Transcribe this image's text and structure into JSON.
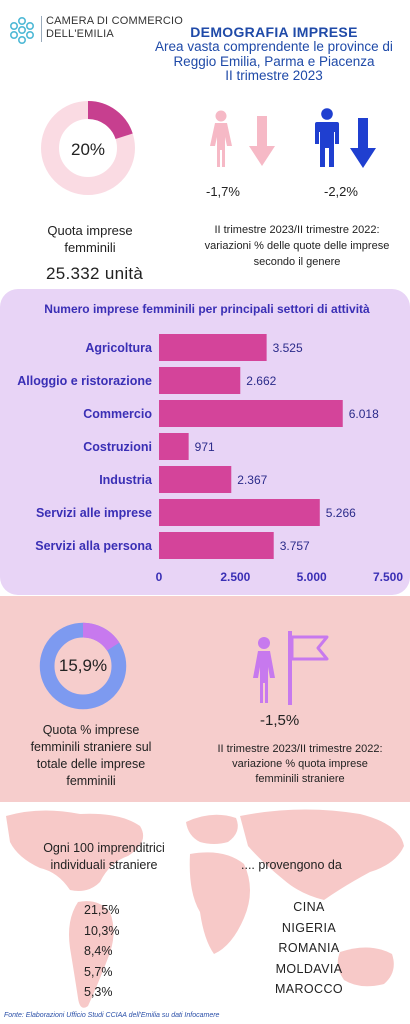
{
  "header": {
    "chamber_line1": "CAMERA DI COMMERCIO",
    "chamber_line2": "DELL'EMILIA",
    "title": "DEMOGRAFIA IMPRESE",
    "subtitle1": "Area vasta comprendente le province di",
    "subtitle2": "Reggio Emilia, Parma e Piacenza",
    "subtitle3": "II trimestre 2023"
  },
  "female_share": {
    "percent_label": "20%",
    "percent_value": 20,
    "label_line1": "Quota imprese",
    "label_line2": "femminili",
    "units": "25.332 unità"
  },
  "gender_variation": {
    "women_pct": "-1,7%",
    "men_pct": "-2,2%",
    "note_line1": "II trimestre 2023/II trimestre 2022:",
    "note_line2": "variazioni % delle quote delle imprese",
    "note_line3": "secondo il genere"
  },
  "foreign_share": {
    "percent_label": "15,9%",
    "percent_value": 15.9,
    "label_line1": "Quota  % imprese",
    "label_line2": "femminili straniere sul",
    "label_line3": "totale delle imprese",
    "label_line4": "femminili",
    "variation": "-1,5%",
    "note_line1": "II trimestre 2023/II trimestre 2022:",
    "note_line2": "variazione % quota imprese",
    "note_line3": "femminili straniere"
  },
  "origins": {
    "intro_line1": "Ogni 100 imprenditrici",
    "intro_line2": "individuali straniere",
    "come_from": ".... provengono da",
    "shares": [
      "21,5%",
      "10,3%",
      "8,4%",
      "5,7%",
      "5,3%"
    ],
    "countries": [
      "CINA",
      "NIGERIA",
      "ROMANIA",
      "MOLDAVIA",
      "MAROCCO"
    ]
  },
  "source": "Fonte: Elaborazioni Ufficio Studi CCIAA dell'Emilia su dati Infocamere",
  "colors": {
    "title_blue": "#1f4aa8",
    "chart_purple_text": "#3a2fb5",
    "bar_pink": "#d4449a",
    "donut_magenta": "#c73f8f",
    "donut_light": "#fadbe3",
    "donut2_blue": "#7d9af0",
    "donut2_violet": "#c779ee",
    "woman_pink": "#f6b9c6",
    "man_blue": "#1f3fd0",
    "panel_lavender": "#e8d4f6",
    "panel_salmon": "#f6cdcc"
  },
  "icons": [
    "logo-icon",
    "woman-icon",
    "arrow-down-icon",
    "man-icon",
    "flag-icon",
    "world-map-icon"
  ],
  "chart_data": {
    "type": "bar",
    "orientation": "horizontal",
    "title": "Numero imprese femminili per principali settori di attività",
    "categories": [
      "Agricoltura",
      "Alloggio e ristorazione",
      "Commercio",
      "Costruzioni",
      "Industria",
      "Servizi alle imprese",
      "Servizi alla persona"
    ],
    "values": [
      3525,
      2662,
      6018,
      971,
      2367,
      5266,
      3757
    ],
    "value_labels": [
      "3.525",
      "2.662",
      "6.018",
      "971",
      "2.367",
      "5.266",
      "3.757"
    ],
    "xlim": [
      0,
      7500
    ],
    "ticks": [
      0,
      2500,
      5000,
      7500
    ],
    "tick_labels": [
      "0",
      "2.500",
      "5.000",
      "7.500"
    ],
    "grid": false,
    "legend": "none"
  }
}
